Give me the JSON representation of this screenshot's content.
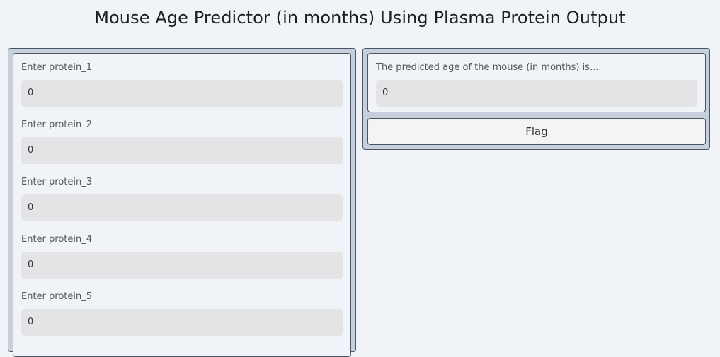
{
  "page": {
    "title": "Mouse Age Predictor (in months) Using Plasma Protein Output"
  },
  "inputs": [
    {
      "label": "Enter protein_1",
      "value": "0"
    },
    {
      "label": "Enter protein_2",
      "value": "0"
    },
    {
      "label": "Enter protein_3",
      "value": "0"
    },
    {
      "label": "Enter protein_4",
      "value": "0"
    },
    {
      "label": "Enter protein_5",
      "value": "0"
    }
  ],
  "output": {
    "label": "The predicted age of the mouse (in months) is....",
    "value": "0"
  },
  "actions": {
    "flag_label": "Flag"
  }
}
